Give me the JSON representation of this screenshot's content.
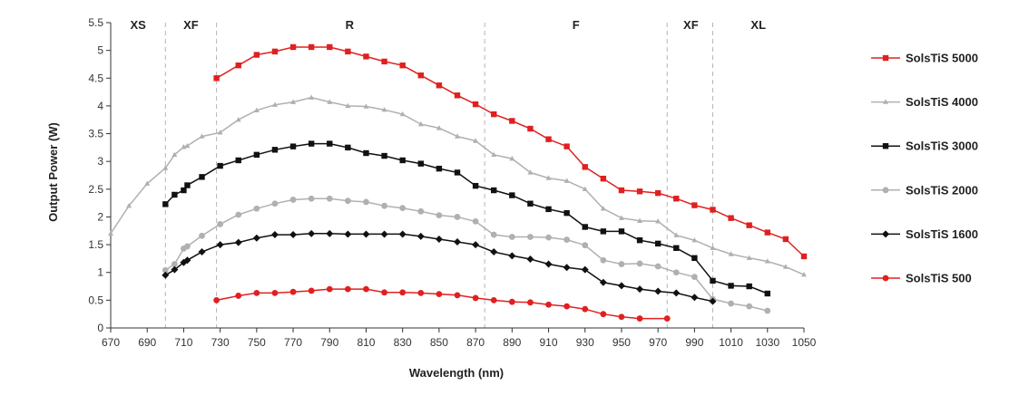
{
  "chart_data": {
    "type": "line",
    "xlabel": "Wavelength (nm)",
    "ylabel": "Output Power (W)",
    "xlim": [
      670,
      1050
    ],
    "ylim": [
      0,
      5.5
    ],
    "x_ticks": [
      "670",
      "690",
      "710",
      "730",
      "750",
      "770",
      "790",
      "810",
      "830",
      "850",
      "870",
      "890",
      "910",
      "930",
      "950",
      "970",
      "990",
      "1010",
      "1030",
      "1050"
    ],
    "y_ticks": [
      "0",
      "0.5",
      "1",
      "1.5",
      "2",
      "2.5",
      "3",
      "3.5",
      "4",
      "4.5",
      "5",
      "5.5"
    ],
    "region_boundaries": [
      700,
      728,
      875,
      975,
      1000
    ],
    "regions": [
      {
        "label": "XS",
        "x": 685
      },
      {
        "label": "XF",
        "x": 714
      },
      {
        "label": "R",
        "x": 801
      },
      {
        "label": "F",
        "x": 925
      },
      {
        "label": "XF",
        "x": 988
      },
      {
        "label": "XL",
        "x": 1025
      }
    ],
    "series": [
      {
        "name": "SolsTiS 5000",
        "color": "#e02020",
        "marker": "square",
        "x": [
          728,
          740,
          750,
          760,
          770,
          780,
          790,
          800,
          810,
          820,
          830,
          840,
          850,
          860,
          870,
          880,
          890,
          900,
          910,
          920,
          930,
          940,
          950,
          960,
          970,
          980,
          990,
          1000,
          1010,
          1020,
          1030,
          1040,
          1050
        ],
        "y": [
          4.5,
          4.73,
          4.92,
          4.98,
          5.06,
          5.06,
          5.06,
          4.98,
          4.89,
          4.8,
          4.73,
          4.55,
          4.37,
          4.19,
          4.03,
          3.85,
          3.73,
          3.59,
          3.4,
          3.27,
          2.9,
          2.69,
          2.48,
          2.46,
          2.43,
          2.33,
          2.21,
          2.13,
          1.98,
          1.85,
          1.72,
          1.6,
          1.29
        ]
      },
      {
        "name": "SolsTiS 4000",
        "color": "#b0b0b0",
        "marker": "triangle",
        "x": [
          670,
          680,
          690,
          700,
          705,
          710,
          712,
          720,
          730,
          740,
          750,
          760,
          770,
          780,
          790,
          800,
          810,
          820,
          830,
          840,
          850,
          860,
          870,
          880,
          890,
          900,
          910,
          920,
          930,
          940,
          950,
          960,
          970,
          980,
          990,
          1000,
          1010,
          1020,
          1030,
          1040,
          1050
        ],
        "y": [
          1.7,
          2.2,
          2.6,
          2.88,
          3.12,
          3.26,
          3.28,
          3.45,
          3.52,
          3.75,
          3.92,
          4.02,
          4.07,
          4.15,
          4.07,
          4.0,
          3.99,
          3.93,
          3.85,
          3.67,
          3.6,
          3.45,
          3.37,
          3.12,
          3.05,
          2.8,
          2.7,
          2.65,
          2.5,
          2.15,
          1.98,
          1.93,
          1.92,
          1.67,
          1.58,
          1.44,
          1.33,
          1.26,
          1.2,
          1.1,
          0.96
        ]
      },
      {
        "name": "SolsTiS 3000",
        "color": "#111111",
        "marker": "square",
        "x": [
          700,
          705,
          710,
          712,
          720,
          730,
          740,
          750,
          760,
          770,
          780,
          790,
          800,
          810,
          820,
          830,
          840,
          850,
          860,
          870,
          880,
          890,
          900,
          910,
          920,
          930,
          940,
          950,
          960,
          970,
          980,
          990,
          1000,
          1010,
          1020,
          1030
        ],
        "y": [
          2.23,
          2.4,
          2.48,
          2.57,
          2.72,
          2.92,
          3.02,
          3.12,
          3.21,
          3.27,
          3.32,
          3.32,
          3.25,
          3.15,
          3.1,
          3.02,
          2.96,
          2.87,
          2.8,
          2.56,
          2.48,
          2.39,
          2.24,
          2.14,
          2.07,
          1.82,
          1.74,
          1.74,
          1.58,
          1.52,
          1.44,
          1.26,
          0.85,
          0.76,
          0.75,
          0.62
        ]
      },
      {
        "name": "SolsTiS 2000",
        "color": "#b0b0b0",
        "marker": "circle",
        "x": [
          700,
          705,
          710,
          712,
          720,
          730,
          740,
          750,
          760,
          770,
          780,
          790,
          800,
          810,
          820,
          830,
          840,
          850,
          860,
          870,
          880,
          890,
          900,
          910,
          920,
          930,
          940,
          950,
          960,
          970,
          980,
          990,
          1000,
          1010,
          1020,
          1030
        ],
        "y": [
          1.04,
          1.15,
          1.43,
          1.47,
          1.66,
          1.87,
          2.04,
          2.15,
          2.24,
          2.31,
          2.33,
          2.33,
          2.29,
          2.27,
          2.2,
          2.16,
          2.1,
          2.03,
          2.0,
          1.92,
          1.68,
          1.64,
          1.64,
          1.63,
          1.59,
          1.49,
          1.22,
          1.15,
          1.16,
          1.11,
          1.0,
          0.92,
          0.52,
          0.44,
          0.39,
          0.31
        ]
      },
      {
        "name": "SolsTiS 1600",
        "color": "#111111",
        "marker": "diamond",
        "x": [
          700,
          705,
          710,
          712,
          720,
          730,
          740,
          750,
          760,
          770,
          780,
          790,
          800,
          810,
          820,
          830,
          840,
          850,
          860,
          870,
          880,
          890,
          900,
          910,
          920,
          930,
          940,
          950,
          960,
          970,
          980,
          990,
          1000
        ],
        "y": [
          0.95,
          1.05,
          1.18,
          1.22,
          1.37,
          1.5,
          1.54,
          1.62,
          1.68,
          1.68,
          1.7,
          1.7,
          1.69,
          1.69,
          1.69,
          1.69,
          1.65,
          1.6,
          1.55,
          1.5,
          1.37,
          1.3,
          1.24,
          1.15,
          1.09,
          1.05,
          0.82,
          0.76,
          0.7,
          0.66,
          0.63,
          0.55,
          0.48
        ]
      },
      {
        "name": "SolsTiS 500",
        "color": "#e02020",
        "marker": "circle",
        "x": [
          728,
          740,
          750,
          760,
          770,
          780,
          790,
          800,
          810,
          820,
          830,
          840,
          850,
          860,
          870,
          880,
          890,
          900,
          910,
          920,
          930,
          940,
          950,
          960,
          975
        ],
        "y": [
          0.5,
          0.58,
          0.63,
          0.63,
          0.65,
          0.67,
          0.7,
          0.7,
          0.7,
          0.64,
          0.64,
          0.63,
          0.61,
          0.59,
          0.54,
          0.5,
          0.47,
          0.46,
          0.42,
          0.39,
          0.34,
          0.25,
          0.2,
          0.17,
          0.17
        ]
      }
    ]
  }
}
